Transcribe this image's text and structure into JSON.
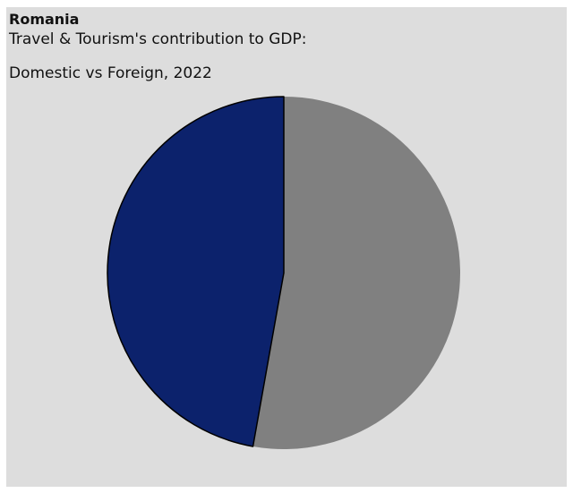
{
  "chart_data": {
    "type": "pie",
    "title": "Romania",
    "subtitle_lines": [
      "Travel & Tourism's contribution to GDP:",
      "Domestic vs Foreign, 2022"
    ],
    "slices": [
      {
        "value": 52.8,
        "color": "#808080"
      },
      {
        "value": 47.2,
        "color": "#0c226c"
      }
    ],
    "start_angle_deg": 0,
    "direction": "clockwise",
    "legend": "none"
  }
}
